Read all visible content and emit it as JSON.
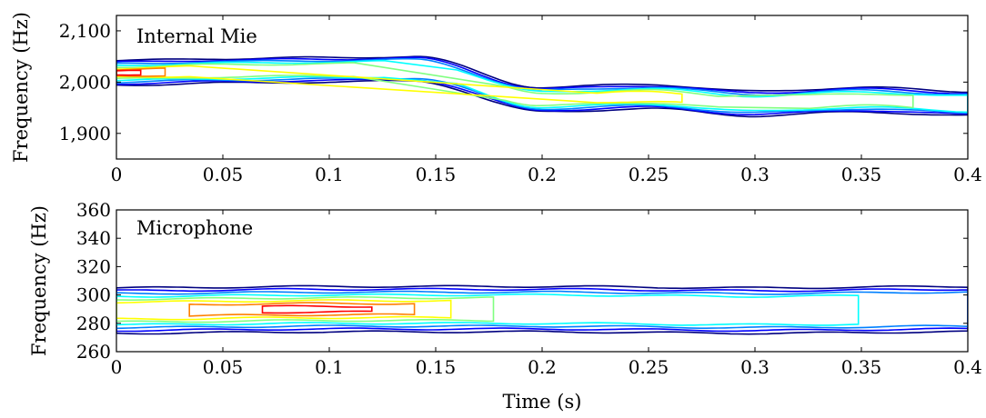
{
  "chart_data": [
    {
      "type": "contour",
      "title": "Internal Mie",
      "ylabel": "Frequency (Hz)",
      "xlabel": "",
      "xlim": [
        0,
        0.4
      ],
      "ylim": [
        1850,
        2130
      ],
      "xticks": [
        0,
        0.05,
        0.1,
        0.15,
        0.2,
        0.25,
        0.3,
        0.35,
        0.4
      ],
      "xtick_labels": [
        "0",
        "0.05",
        "0.1",
        "0.15",
        "0.2",
        "0.25",
        "0.3",
        "0.35",
        "0.4"
      ],
      "yticks": [
        1900,
        2000,
        2100
      ],
      "ytick_labels": [
        "1,900",
        "2,000",
        "2,100"
      ],
      "grid": false,
      "colormap": [
        "#000080",
        "#0000ff",
        "#0080ff",
        "#00ffff",
        "#80ff80",
        "#ffff00",
        "#ff8000",
        "#ff0000"
      ],
      "ridge": [
        {
          "t": 0.0,
          "f": 2018,
          "level": 8
        },
        {
          "t": 0.05,
          "f": 2022,
          "level": 5
        },
        {
          "t": 0.1,
          "f": 2024,
          "level": 5
        },
        {
          "t": 0.14,
          "f": 2026,
          "level": 3
        },
        {
          "t": 0.2,
          "f": 1966,
          "level": 5
        },
        {
          "t": 0.25,
          "f": 1972,
          "level": 6
        },
        {
          "t": 0.3,
          "f": 1958,
          "level": 4
        },
        {
          "t": 0.35,
          "f": 1966,
          "level": 5
        },
        {
          "t": 0.4,
          "f": 1958,
          "level": 4
        }
      ]
    },
    {
      "type": "contour",
      "title": "Microphone",
      "ylabel": "Frequency (Hz)",
      "xlabel": "Time (s)",
      "xlim": [
        0,
        0.4
      ],
      "ylim": [
        260,
        360
      ],
      "xticks": [
        0,
        0.05,
        0.1,
        0.15,
        0.2,
        0.25,
        0.3,
        0.35,
        0.4
      ],
      "xtick_labels": [
        "0",
        "0.05",
        "0.1",
        "0.15",
        "0.2",
        "0.25",
        "0.3",
        "0.35",
        "0.4"
      ],
      "yticks": [
        260,
        280,
        300,
        320,
        340,
        360
      ],
      "ytick_labels": [
        "260",
        "280",
        "300",
        "320",
        "340",
        "360"
      ],
      "grid": false,
      "colormap": [
        "#000080",
        "#0000ff",
        "#0080ff",
        "#00ffff",
        "#80ff80",
        "#ffff00",
        "#ff8000",
        "#ff0000"
      ],
      "ridge": [
        {
          "t": 0.0,
          "f": 289,
          "level": 6
        },
        {
          "t": 0.1,
          "f": 290,
          "level": 8
        },
        {
          "t": 0.2,
          "f": 290,
          "level": 4
        },
        {
          "t": 0.3,
          "f": 289,
          "level": 4
        },
        {
          "t": 0.4,
          "f": 290,
          "level": 3
        }
      ]
    }
  ]
}
